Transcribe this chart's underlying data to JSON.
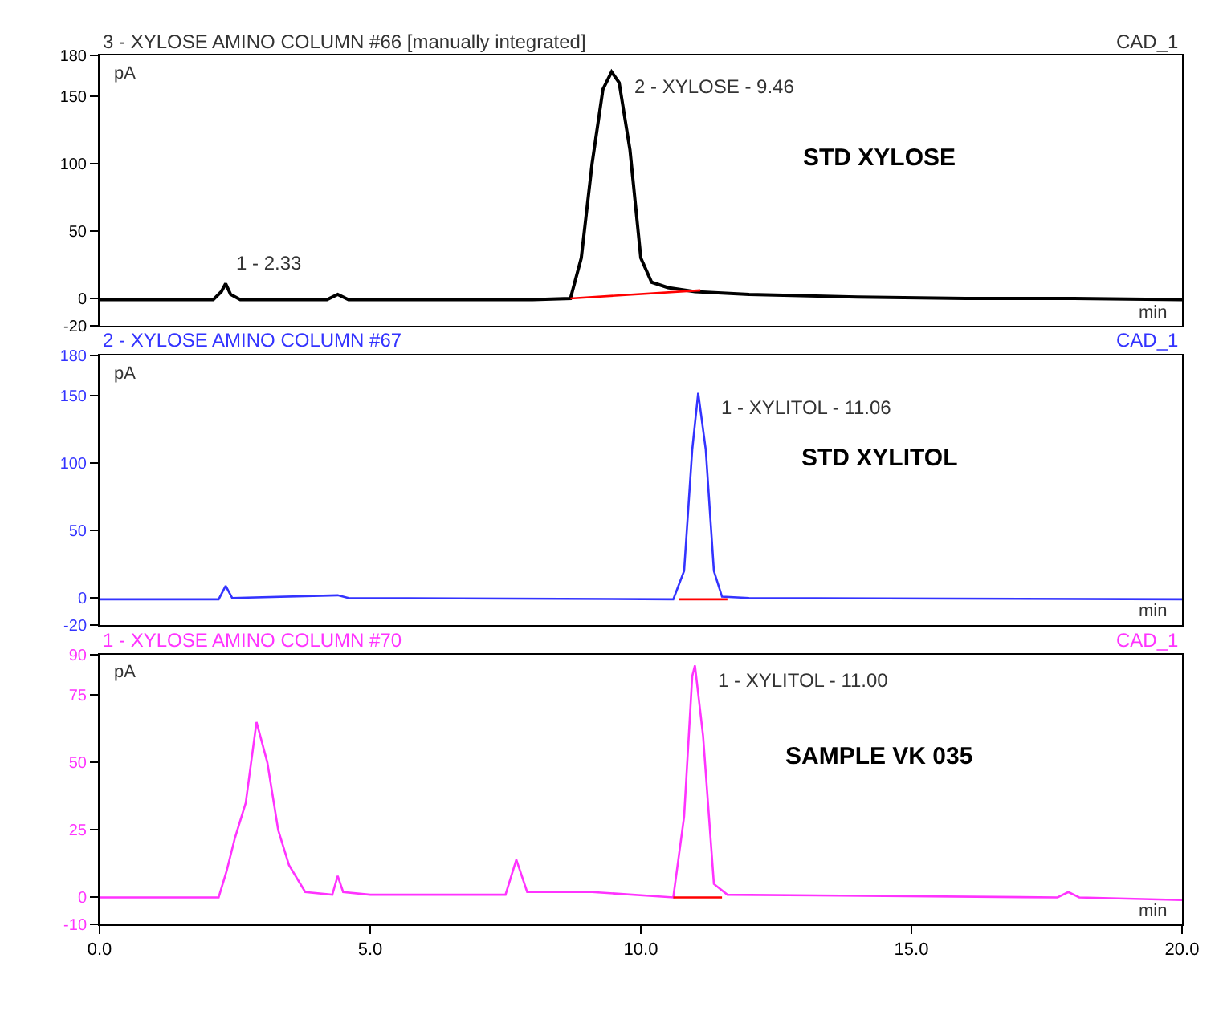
{
  "chart_data": [
    {
      "type": "line",
      "title": "3 - XYLOSE AMINO COLUMN #66 [manually integrated]",
      "ylabel": "pA",
      "xlabel": "min",
      "xlim": [
        0,
        20
      ],
      "ylim": [
        -20,
        180
      ],
      "yticks": [
        -20,
        0,
        50,
        100,
        150,
        180
      ],
      "tick_labels": "y",
      "marker": "none",
      "line_style": "solid",
      "series": [
        {
          "color": "#000000",
          "x": [
            0,
            2.1,
            2.25,
            2.33,
            2.42,
            2.6,
            4.2,
            4.4,
            4.6,
            8.0,
            8.7,
            8.9,
            9.1,
            9.3,
            9.46,
            9.6,
            9.8,
            10.0,
            10.2,
            10.5,
            11,
            12,
            14,
            16,
            18,
            20
          ],
          "values": [
            -1,
            -1,
            5,
            11,
            3,
            -1,
            -1,
            3,
            -1,
            -1,
            0,
            30,
            100,
            155,
            168,
            160,
            110,
            30,
            12,
            8,
            5,
            3,
            1,
            0,
            0,
            -1
          ]
        },
        {
          "color": "#ff0000",
          "x": [
            8.7,
            11.1
          ],
          "values": [
            0,
            6
          ]
        }
      ],
      "annotations": [
        {
          "text": "1 - 2.33",
          "x": 2.33,
          "y": 11
        },
        {
          "text": "2 - XYLOSE - 9.46",
          "x": 9.46,
          "y": 168
        },
        "STD XYLOSE",
        "CAD_1"
      ]
    },
    {
      "type": "line",
      "title": "2 - XYLOSE AMINO COLUMN #67",
      "ylabel": "pA",
      "xlabel": "min",
      "xlim": [
        0,
        20
      ],
      "ylim": [
        -20,
        180
      ],
      "yticks": [
        -20,
        0,
        50,
        100,
        150,
        180
      ],
      "tick_labels": "y",
      "marker": "none",
      "line_style": "solid",
      "series": [
        {
          "color": "#3333ff",
          "x": [
            0,
            2.2,
            2.33,
            2.45,
            4.4,
            4.6,
            10.6,
            10.8,
            10.95,
            11.06,
            11.2,
            11.35,
            11.5,
            12,
            20
          ],
          "values": [
            -1,
            -1,
            9,
            0,
            2,
            0,
            -1,
            20,
            110,
            152,
            110,
            20,
            1,
            0,
            -1
          ]
        },
        {
          "color": "#ff0000",
          "x": [
            10.7,
            11.6
          ],
          "values": [
            -1,
            -1
          ]
        }
      ],
      "annotations": [
        {
          "text": "1 - XYLITOL - 11.06",
          "x": 11.06,
          "y": 152
        },
        "STD XYLITOL",
        "CAD_1"
      ]
    },
    {
      "type": "line",
      "title": "1 - XYLOSE AMINO COLUMN #70",
      "ylabel": "pA",
      "xlabel": "min",
      "xlim": [
        0,
        20
      ],
      "ylim": [
        -10,
        90
      ],
      "yticks": [
        -10,
        0,
        25,
        50,
        75,
        90
      ],
      "xticks": [
        {
          "value": 0,
          "label": "0.0"
        },
        {
          "value": 5,
          "label": "5.0"
        },
        {
          "value": 10,
          "label": "10.0"
        },
        {
          "value": 15,
          "label": "15.0"
        },
        {
          "value": 20,
          "label": "20.0"
        }
      ],
      "marker": "none",
      "line_style": "solid",
      "series": [
        {
          "color": "#ff33ff",
          "x": [
            0,
            2.2,
            2.35,
            2.5,
            2.7,
            2.9,
            3.1,
            3.3,
            3.5,
            3.8,
            4.3,
            4.4,
            4.5,
            5,
            7.5,
            7.7,
            7.9,
            9.1,
            10.6,
            10.8,
            10.95,
            11.0,
            11.15,
            11.35,
            11.6,
            17.7,
            17.9,
            18.1,
            20
          ],
          "values": [
            0,
            0,
            10,
            22,
            35,
            65,
            50,
            25,
            12,
            2,
            1,
            8,
            2,
            1,
            1,
            14,
            2,
            2,
            0,
            30,
            82,
            86,
            60,
            5,
            1,
            0,
            2,
            0,
            -1
          ]
        },
        {
          "color": "#ff0000",
          "x": [
            10.6,
            11.5
          ],
          "values": [
            0,
            0
          ]
        }
      ],
      "annotations": [
        {
          "text": "1 - XYLITOL - 11.00",
          "x": 11.0,
          "y": 86
        },
        "SAMPLE VK 035",
        "CAD_1"
      ]
    }
  ]
}
